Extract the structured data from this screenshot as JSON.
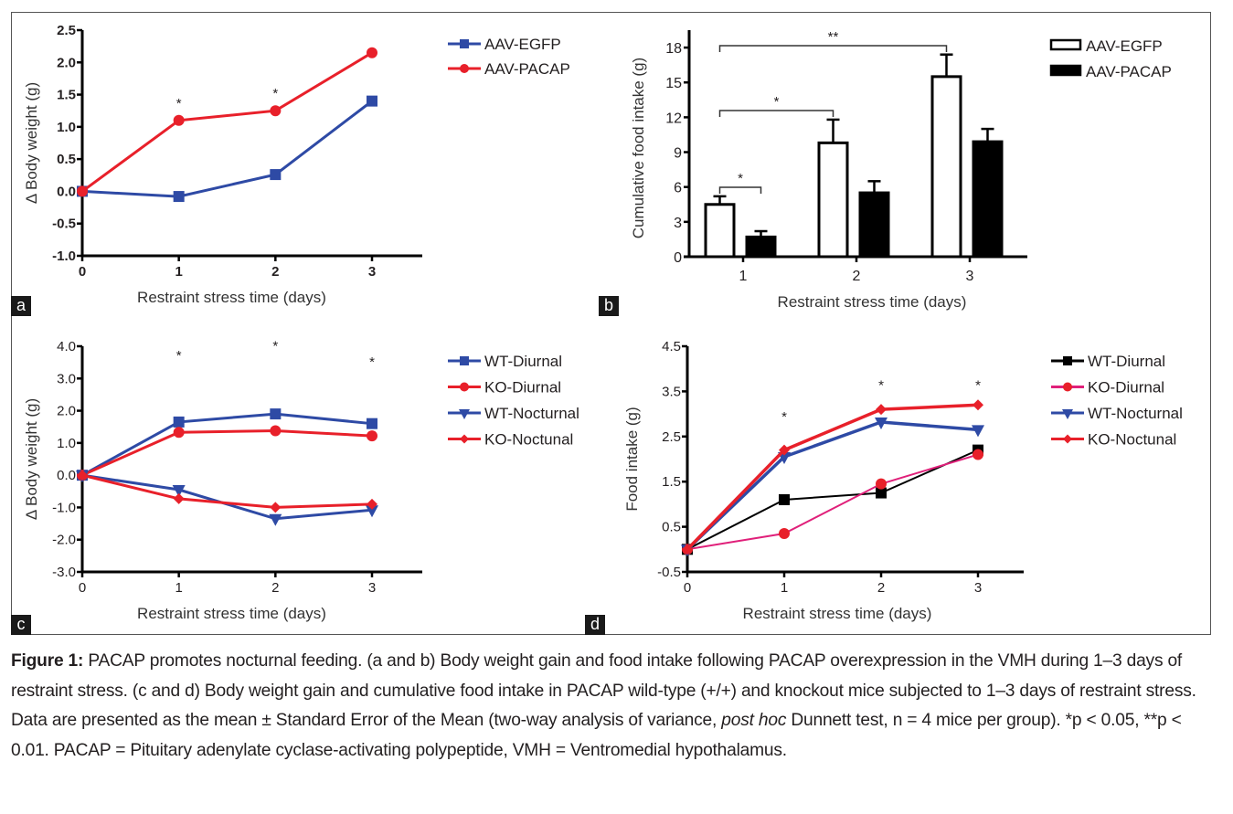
{
  "caption": {
    "label": "Figure 1:",
    "text_1": " PACAP promotes nocturnal feeding. (a and b) Body weight gain and food intake following PACAP overexpression in the VMH during 1–3 days of restraint stress. (c and d) Body weight gain and cumulative food intake in PACAP wild-type (+/+) and knockout mice subjected to 1–3 days of restraint stress. Data are presented as the mean ± Standard Error of the Mean (two-way analysis of variance, ",
    "italic": "post hoc",
    "text_2": " Dunnett test, n = 4 mice per group). *p < 0.05, **p < 0.01. PACAP = Pituitary adenylate cyclase-activating polypeptide, VMH = Ventromedial hypothalamus."
  },
  "colors": {
    "blue": "#2e4aa5",
    "red": "#e8202a",
    "black": "#000000",
    "magenta": "#e0207a"
  },
  "chart_data": [
    {
      "panel": "a",
      "type": "line",
      "xlabel": "Restraint stress time (days)",
      "ylabel": "Δ Body weight (g)",
      "x": [
        0,
        1,
        2,
        3
      ],
      "xticks": [
        "0",
        "1",
        "2",
        "3"
      ],
      "ylim": [
        -1.0,
        2.5
      ],
      "yticks": [
        "-1.0",
        "-0.5",
        "0.0",
        "0.5",
        "1.0",
        "1.5",
        "2.0",
        "2.5"
      ],
      "legend_position": "top-right",
      "series": [
        {
          "name": "AAV-EGFP",
          "color": "#2e4aa5",
          "marker": "square",
          "values": [
            0.0,
            -0.08,
            0.26,
            1.4
          ]
        },
        {
          "name": "AAV-PACAP",
          "color": "#e8202a",
          "marker": "circle",
          "values": [
            0.0,
            1.1,
            1.25,
            2.15
          ]
        }
      ],
      "annotations": [
        {
          "x": 1,
          "text": "*"
        },
        {
          "x": 2,
          "text": "*"
        }
      ],
      "grid": false
    },
    {
      "panel": "b",
      "type": "bar",
      "xlabel": "Restraint stress time (days)",
      "ylabel": "Cumulative food intake (g)",
      "categories": [
        "1",
        "2",
        "3"
      ],
      "ylim": [
        0,
        19.5
      ],
      "yticks": [
        "0",
        "3",
        "6",
        "9",
        "12",
        "15",
        "18"
      ],
      "legend_position": "top-right",
      "series": [
        {
          "name": "AAV-EGFP",
          "fill": "open",
          "values": [
            4.5,
            9.8,
            15.5
          ],
          "errors": [
            0.7,
            2.0,
            1.9
          ]
        },
        {
          "name": "AAV-PACAP",
          "fill": "solid",
          "values": [
            1.7,
            5.5,
            9.9
          ],
          "errors": [
            0.5,
            1.0,
            1.1
          ]
        }
      ],
      "annotations": [
        {
          "from": "1-EGFP",
          "to": "1-PACAP",
          "text": "*"
        },
        {
          "from": "1-EGFP",
          "to": "2-EGFP",
          "text": "*"
        },
        {
          "from": "1-EGFP",
          "to": "3-EGFP",
          "text": "**"
        }
      ],
      "grid": false
    },
    {
      "panel": "c",
      "type": "line",
      "xlabel": "Restraint stress time (days)",
      "ylabel": "Δ Body weight (g)",
      "x": [
        0,
        1,
        2,
        3
      ],
      "xticks": [
        "0",
        "1",
        "2",
        "3"
      ],
      "ylim": [
        -3.0,
        4.0
      ],
      "yticks": [
        "-3.0",
        "-2.0",
        "-1.0",
        "0.0",
        "1.0",
        "2.0",
        "3.0",
        "4.0"
      ],
      "legend_position": "top-right",
      "series": [
        {
          "name": "WT-Diurnal",
          "color": "#2e4aa5",
          "marker": "square",
          "values": [
            0.0,
            1.65,
            1.9,
            1.6
          ]
        },
        {
          "name": "KO-Diurnal",
          "color": "#e8202a",
          "marker": "circle",
          "values": [
            0.0,
            1.33,
            1.38,
            1.22
          ]
        },
        {
          "name": "WT-Nocturnal",
          "color": "#2e4aa5",
          "marker": "triangle-down",
          "values": [
            0.0,
            -0.45,
            -1.35,
            -1.08
          ]
        },
        {
          "name": "KO-Noctunal",
          "color": "#e8202a",
          "marker": "diamond",
          "values": [
            0.0,
            -0.73,
            -1.0,
            -0.9
          ]
        }
      ],
      "annotations": [
        {
          "x": 1,
          "text": "*",
          "y": 3.8
        },
        {
          "x": 2,
          "text": "*",
          "y": 4.1
        },
        {
          "x": 3,
          "text": "*",
          "y": 3.6
        }
      ],
      "grid": false
    },
    {
      "panel": "d",
      "type": "line",
      "xlabel": "Restraint stress time (days)",
      "ylabel": "Food intake (g)",
      "x": [
        0,
        1,
        2,
        3
      ],
      "xticks": [
        "0",
        "1",
        "2",
        "3"
      ],
      "ylim": [
        -0.5,
        4.5
      ],
      "yticks": [
        "-0.5",
        "0.5",
        "1.5",
        "2.5",
        "3.5",
        "4.5"
      ],
      "legend_position": "top-right",
      "series": [
        {
          "name": "WT-Diurnal",
          "color": "#000000",
          "marker": "square",
          "values": [
            0.0,
            1.1,
            1.25,
            2.2
          ]
        },
        {
          "name": "KO-Diurnal",
          "color": "#e0207a",
          "marker_color": "#e8202a",
          "marker": "circle",
          "values": [
            0.0,
            0.35,
            1.45,
            2.1
          ]
        },
        {
          "name": "WT-Nocturnal",
          "color": "#2e4aa5",
          "marker": "triangle-down",
          "values": [
            0.0,
            2.05,
            2.82,
            2.65
          ]
        },
        {
          "name": "KO-Noctunal",
          "color": "#e8202a",
          "marker": "diamond",
          "values": [
            0.0,
            2.2,
            3.1,
            3.2
          ]
        }
      ],
      "annotations": [
        {
          "x": 1,
          "text": "*",
          "y": 3.0
        },
        {
          "x": 2,
          "text": "*",
          "y": 3.7
        },
        {
          "x": 3,
          "text": "*",
          "y": 3.7
        }
      ],
      "grid": false
    }
  ],
  "panel_letters": [
    "a",
    "b",
    "c",
    "d"
  ]
}
